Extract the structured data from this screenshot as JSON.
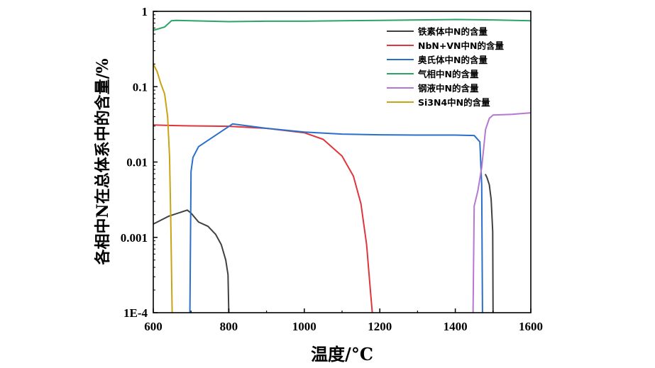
{
  "chart_data": {
    "type": "line",
    "xlabel": "温度/°C",
    "ylabel": "各相中N在总体系中的含量/%",
    "xlim": [
      600,
      1600
    ],
    "ylim": [
      0.0001,
      1
    ],
    "yscale": "log",
    "x_ticks": [
      600,
      800,
      1000,
      1200,
      1400,
      1600
    ],
    "x_tick_labels": [
      "600",
      "800",
      "1000",
      "1200",
      "1400",
      "1600"
    ],
    "y_ticks": [
      0.0001,
      0.001,
      0.01,
      0.1,
      1
    ],
    "y_tick_labels": [
      "1E-4",
      "0.001",
      "0.01",
      "0.1",
      "1"
    ],
    "legend_position": "top-right",
    "series": [
      {
        "name": "铁素体中N的含量",
        "color": "#404040",
        "x": [
          600,
          640,
          690,
          700,
          720,
          745,
          765,
          780,
          792,
          798,
          800,
          null,
          1480,
          1484,
          1490,
          1495,
          1499,
          1500
        ],
        "y": [
          0.0015,
          0.0019,
          0.0023,
          0.0021,
          0.0016,
          0.0014,
          0.0011,
          0.0008,
          0.0005,
          0.00032,
          0.0001,
          null,
          0.0068,
          0.0062,
          0.005,
          0.0032,
          0.0012,
          0.0001
        ]
      },
      {
        "name": "NbN+VN中N的含量",
        "color": "#e0353d",
        "x": [
          600,
          650,
          700,
          800,
          900,
          1000,
          1050,
          1100,
          1130,
          1150,
          1165,
          1175,
          1180
        ],
        "y": [
          0.031,
          0.0305,
          0.0302,
          0.0298,
          0.028,
          0.0245,
          0.02,
          0.012,
          0.0065,
          0.0028,
          0.0008,
          0.0002,
          0.0001
        ]
      },
      {
        "name": "奥氏体中N的含量",
        "color": "#2a6fc9",
        "x": [
          697,
          700,
          705,
          720,
          810,
          900,
          1000,
          1100,
          1200,
          1300,
          1400,
          1450,
          1465,
          1470,
          1472
        ],
        "y": [
          0.0001,
          0.0075,
          0.0115,
          0.016,
          0.032,
          0.028,
          0.025,
          0.0235,
          0.023,
          0.0228,
          0.0228,
          0.0225,
          0.0185,
          0.005,
          0.0001
        ]
      },
      {
        "name": "气相中N的含量",
        "color": "#2aa566",
        "x": [
          600,
          630,
          648,
          660,
          700,
          800,
          900,
          1000,
          1100,
          1200,
          1300,
          1400,
          1500,
          1600
        ],
        "y": [
          0.56,
          0.62,
          0.75,
          0.76,
          0.75,
          0.73,
          0.74,
          0.74,
          0.75,
          0.76,
          0.77,
          0.78,
          0.77,
          0.75
        ]
      },
      {
        "name": "钢液中N的含量",
        "color": "#b478d2",
        "x": [
          1447,
          1450,
          1460,
          1470,
          1475,
          1480,
          1490,
          1500,
          1550,
          1600
        ],
        "y": [
          0.0001,
          0.0026,
          0.0042,
          0.0085,
          0.015,
          0.027,
          0.038,
          0.042,
          0.043,
          0.045
        ]
      },
      {
        "name": "Si3N4中N的含量",
        "color": "#c9a414",
        "x": [
          600,
          610,
          620,
          630,
          638,
          643,
          646,
          648,
          649,
          650
        ],
        "y": [
          0.2,
          0.16,
          0.11,
          0.08,
          0.04,
          0.012,
          0.002,
          0.0005,
          0.0002,
          0.0001
        ]
      }
    ]
  }
}
